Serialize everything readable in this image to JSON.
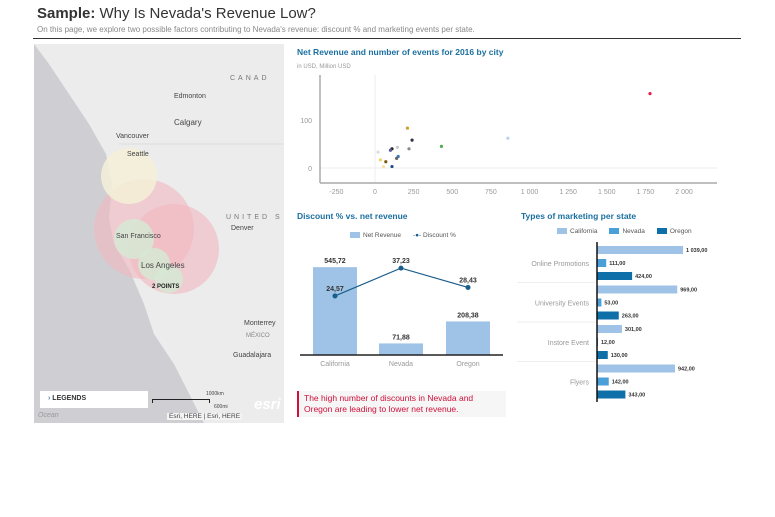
{
  "header": {
    "title_bold": "Sample:",
    "title_rest": " Why Is Nevada's Revenue Low?",
    "subtitle": "On this page, we explore two possible factors contributing to Nevada's revenue: discount % and marketing events per state."
  },
  "map": {
    "labels": [
      "CANAD",
      "Edmonton",
      "Calgary",
      "Vancouver",
      "Seattle",
      "UNITED S",
      "Denver",
      "San Francisco",
      "Los Angeles",
      "2 POINTS",
      "Monterrey",
      "MÉXICO",
      "Guadalajara",
      "Ocean"
    ],
    "legends_label": "LEGENDS",
    "scale_km": "1000km",
    "scale_mi": "600mi",
    "attribution": "Esri, HERE | Esri, HERE",
    "logo": "esri"
  },
  "chart_data": [
    {
      "type": "scatter",
      "title": "Net Revenue and number of events for 2016 by city",
      "subtitle": "in USD, Million USD",
      "xlim": [
        -250,
        2000
      ],
      "ylim": [
        -10,
        150
      ],
      "xticks": [
        "-250",
        "0",
        "250",
        "500",
        "750",
        "1 000",
        "1 250",
        "1 500",
        "1 750",
        "2 000"
      ],
      "yticks": [
        "0",
        "100"
      ],
      "points": [
        {
          "x": 1780,
          "y": 155,
          "color": "#e0204a"
        },
        {
          "x": 860,
          "y": 62,
          "color": "#b8d4ee"
        },
        {
          "x": 430,
          "y": 45,
          "color": "#4caf50"
        },
        {
          "x": 210,
          "y": 83,
          "color": "#c9a227"
        },
        {
          "x": 240,
          "y": 58,
          "color": "#333344"
        },
        {
          "x": 220,
          "y": 40,
          "color": "#888"
        },
        {
          "x": 145,
          "y": 43,
          "color": "#ccc"
        },
        {
          "x": 110,
          "y": 40,
          "color": "#222"
        },
        {
          "x": 100,
          "y": 37,
          "color": "#5a5aa0"
        },
        {
          "x": 20,
          "y": 33,
          "color": "#ddd"
        },
        {
          "x": 35,
          "y": 17,
          "color": "#f3d36b"
        },
        {
          "x": 70,
          "y": 13,
          "color": "#7a5a10"
        },
        {
          "x": 55,
          "y": 3,
          "color": "#f7e3a0"
        },
        {
          "x": 110,
          "y": 3,
          "color": "#1a4d80"
        },
        {
          "x": 150,
          "y": 24,
          "color": "#3a7ab8"
        },
        {
          "x": 140,
          "y": 20,
          "color": "#666"
        }
      ]
    },
    {
      "type": "bar",
      "title": "Discount % vs. net revenue",
      "categories": [
        "California",
        "Nevada",
        "Oregon"
      ],
      "series": [
        {
          "name": "Net Revenue",
          "values": [
            545.72,
            71.88,
            208.38
          ],
          "labels": [
            "545,72",
            "71,88",
            "208,38"
          ],
          "color": "#9fc3e6"
        },
        {
          "name": "Discount %",
          "type": "line",
          "values": [
            24.57,
            37.23,
            28.43
          ],
          "labels": [
            "24,57",
            "37,23",
            "28,43"
          ],
          "color": "#1a5c8a"
        }
      ]
    },
    {
      "type": "bar",
      "orientation": "horizontal",
      "title": "Types of marketing per state",
      "categories": [
        "Online Promotions",
        "University Events",
        "Instore Event",
        "Flyers"
      ],
      "series": [
        {
          "name": "California",
          "values": [
            1039,
            969,
            301,
            942
          ],
          "labels": [
            "1 039,00",
            "969,00",
            "301,00",
            "942,00"
          ],
          "color": "#9fc3e6"
        },
        {
          "name": "Nevada",
          "values": [
            111,
            53,
            12,
            142
          ],
          "labels": [
            "111,00",
            "53,00",
            "12,00",
            "142,00"
          ],
          "color": "#4a9fd8"
        },
        {
          "name": "Oregon",
          "values": [
            424,
            263,
            130,
            343
          ],
          "labels": [
            "424,00",
            "263,00",
            "130,00",
            "343,00"
          ],
          "color": "#0f6fa8"
        }
      ]
    }
  ],
  "note": "The high number of discounts in Nevada and Oregon are leading to lower net revenue."
}
